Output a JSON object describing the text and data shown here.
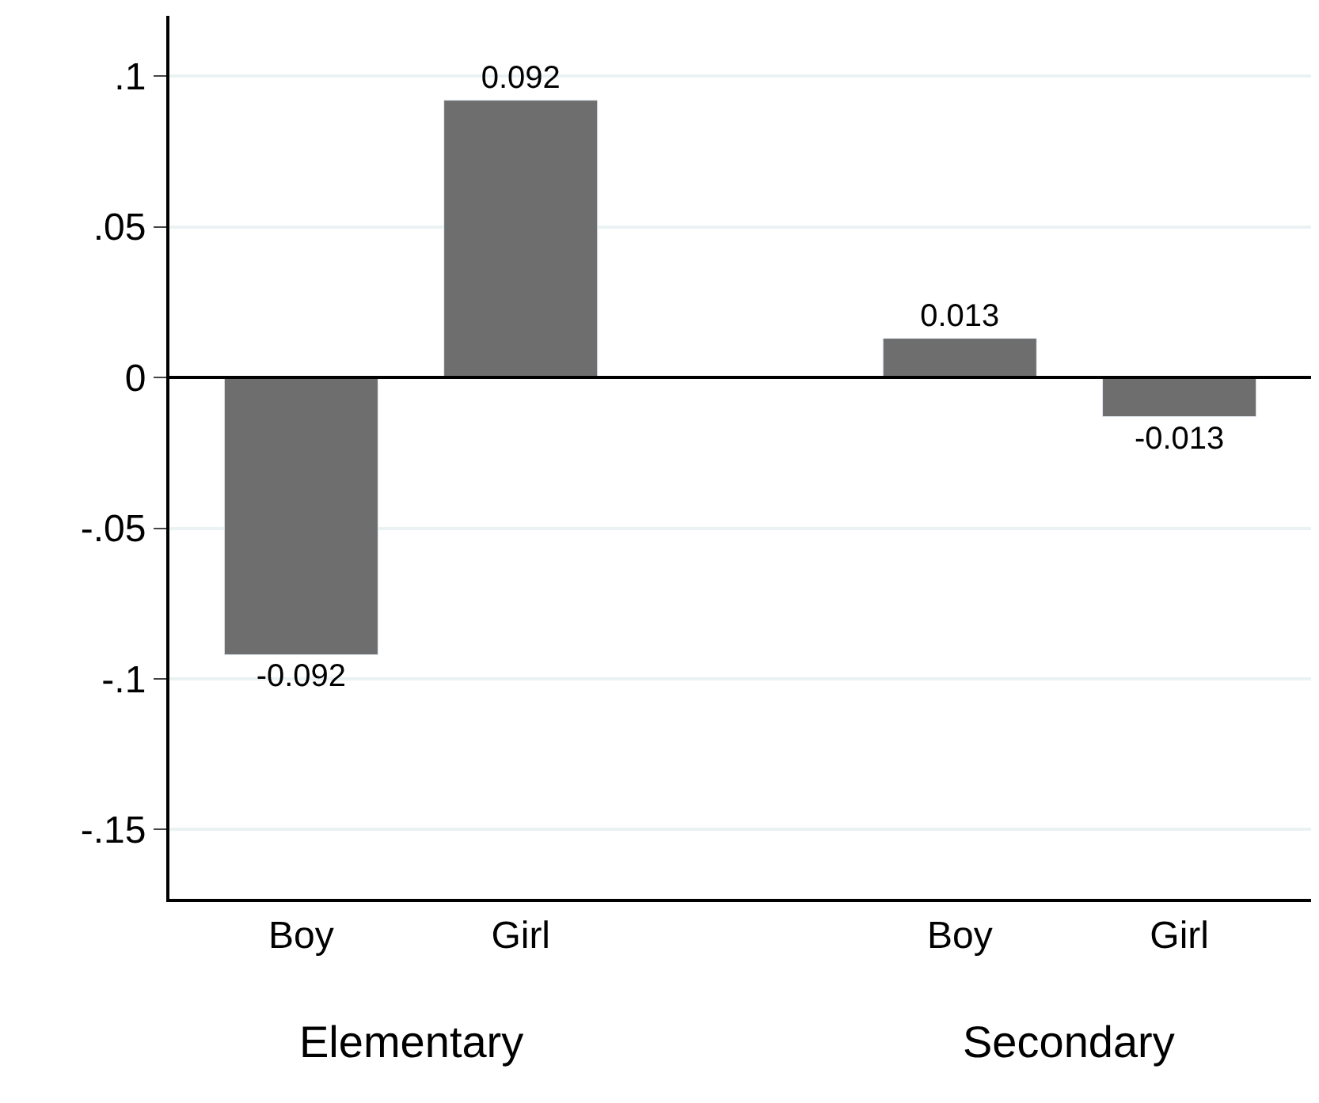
{
  "chart_data": {
    "type": "bar",
    "categories": [
      "Boy",
      "Girl",
      null,
      "Boy",
      "Girl"
    ],
    "values": [
      -0.092,
      0.092,
      null,
      0.013,
      -0.013
    ],
    "color": "#6e6e6e",
    "data_labels": true,
    "ylim": [
      -0.173,
      0.12
    ],
    "yticks": [
      {
        "value": -0.15,
        "label": "-.15"
      },
      {
        "value": -0.1,
        "label": "-.1"
      },
      {
        "value": -0.05,
        "label": "-.05"
      },
      0,
      {
        "value": 0.05,
        "label": ".05"
      },
      {
        "value": 0.1,
        "label": ".1"
      }
    ],
    "grid": "y",
    "ref_lines": [
      {
        "axis": "y",
        "value": 0,
        "color": "#000000"
      }
    ],
    "annotations": [
      "Elementary",
      "Secondary"
    ]
  }
}
